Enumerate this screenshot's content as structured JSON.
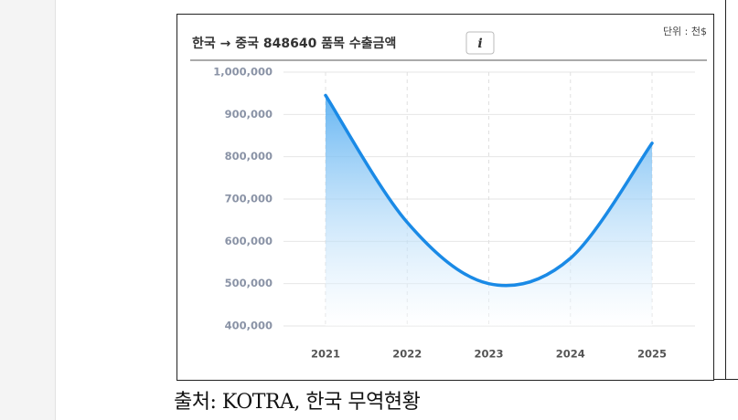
{
  "chart_data": {
    "type": "line",
    "title": "한국 → 중국 848640 품목  수출금액",
    "unit": "단위 : 천$",
    "categories": [
      "2021",
      "2022",
      "2023",
      "2024",
      "2025"
    ],
    "series": [
      {
        "name": "수출금액",
        "color": "#1a8ae6",
        "values": [
          945000,
          645000,
          500000,
          560000,
          832000
        ]
      }
    ],
    "ylim": [
      400000,
      1000000
    ],
    "yticks": [
      {
        "value": 400000,
        "label": "400,000"
      },
      {
        "value": 500000,
        "label": "500,000"
      },
      {
        "value": 600000,
        "label": "600,000"
      },
      {
        "value": 700000,
        "label": "700,000"
      },
      {
        "value": 800000,
        "label": "800,000"
      },
      {
        "value": 900000,
        "label": "900,000"
      },
      {
        "value": 1000000,
        "label": "1,000,000"
      }
    ],
    "grid": true,
    "smooth": true,
    "area": true
  },
  "caption": "출처: KOTRA, 한국 무역현황"
}
